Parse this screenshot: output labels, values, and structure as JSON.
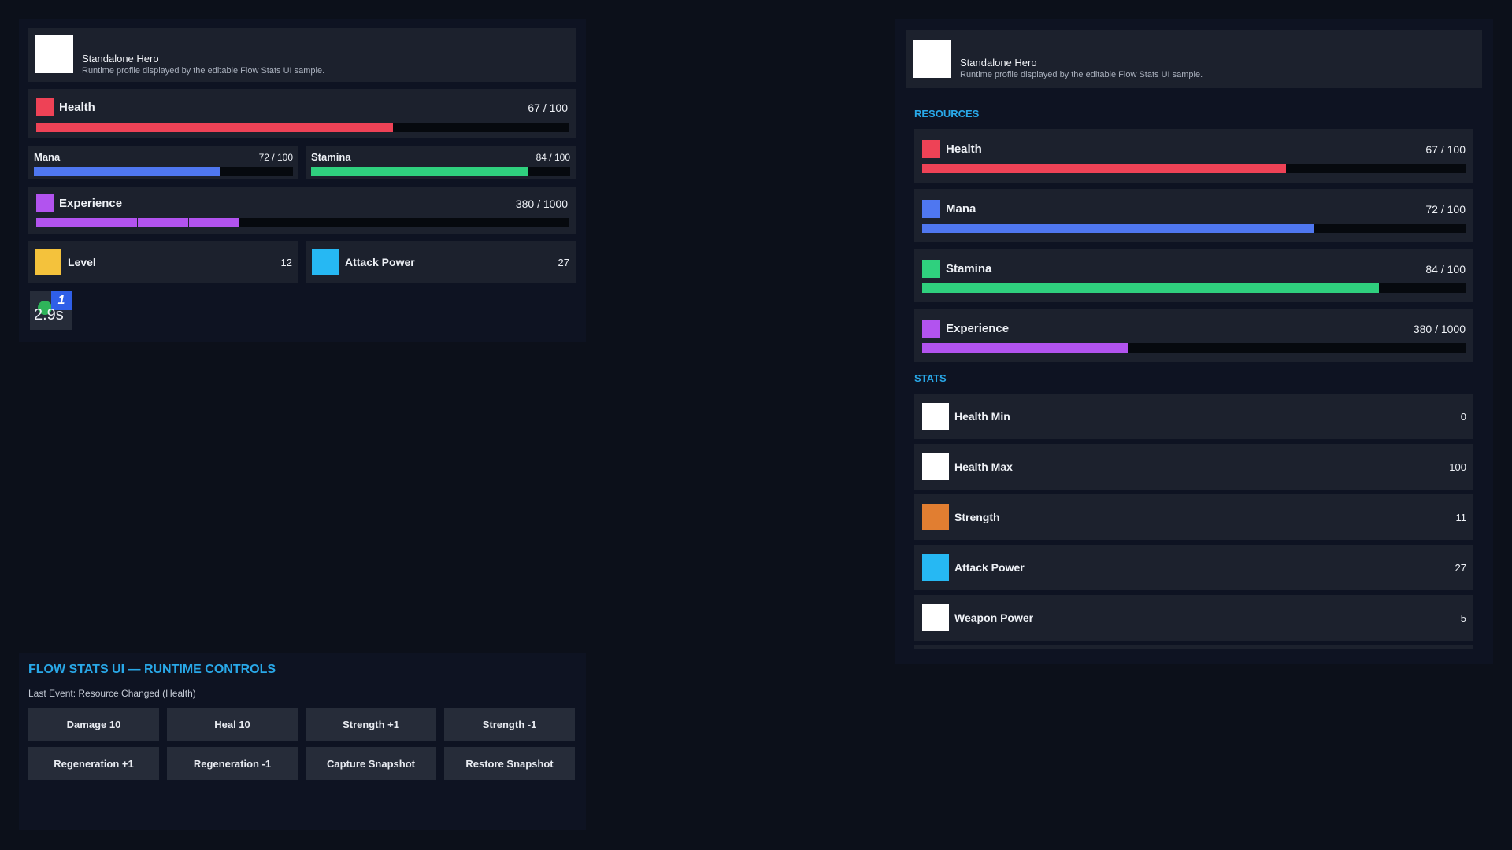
{
  "colors": {
    "accent": "#29a8e8",
    "health": "#ee4256",
    "mana": "#4f77f0",
    "stamina": "#2fd07e",
    "experience": "#b253ef",
    "level": "#f4c23c",
    "attack_power": "#26b8f3",
    "strength": "#e17e31",
    "white_icon": "#ffffff"
  },
  "left_panel": {
    "profile": {
      "name": "Standalone Hero",
      "description": "Runtime profile displayed by the editable Flow Stats UI sample."
    },
    "health": {
      "label": "Health",
      "value_text": "67 / 100",
      "fraction": 0.67
    },
    "mana": {
      "label": "Mana",
      "value_text": "72 / 100",
      "fraction": 0.72
    },
    "stamina": {
      "label": "Stamina",
      "value_text": "84 / 100",
      "fraction": 0.84
    },
    "experience": {
      "label": "Experience",
      "value_text": "380 / 1000",
      "fraction": 0.38,
      "segments": 4
    },
    "level": {
      "label": "Level",
      "value": "12"
    },
    "attack_power": {
      "label": "Attack Power",
      "value": "27"
    },
    "effect": {
      "badge": "1",
      "timer": "2.9s"
    }
  },
  "controls": {
    "title": "FLOW STATS UI — RUNTIME CONTROLS",
    "last_event": "Last Event: Resource Changed (Health)",
    "buttons": [
      "Damage 10",
      "Heal 10",
      "Strength +1",
      "Strength -1",
      "Regeneration +1",
      "Regeneration -1",
      "Capture Snapshot",
      "Restore Snapshot"
    ]
  },
  "right_panel": {
    "profile": {
      "name": "Standalone Hero",
      "description": "Runtime profile displayed by the editable Flow Stats UI sample."
    },
    "resources_title": "RESOURCES",
    "resources": [
      {
        "label": "Health",
        "value_text": "67 / 100",
        "fraction": 0.67,
        "color": "#ee4256"
      },
      {
        "label": "Mana",
        "value_text": "72 / 100",
        "fraction": 0.72,
        "color": "#4f77f0"
      },
      {
        "label": "Stamina",
        "value_text": "84 / 100",
        "fraction": 0.84,
        "color": "#2fd07e"
      },
      {
        "label": "Experience",
        "value_text": "380 / 1000",
        "fraction": 0.38,
        "color": "#b253ef"
      }
    ],
    "stats_title": "STATS",
    "stats": [
      {
        "label": "Health Min",
        "value": "0",
        "color": "#ffffff"
      },
      {
        "label": "Health Max",
        "value": "100",
        "color": "#ffffff"
      },
      {
        "label": "Strength",
        "value": "11",
        "color": "#e17e31"
      },
      {
        "label": "Attack Power",
        "value": "27",
        "color": "#26b8f3"
      },
      {
        "label": "Weapon Power",
        "value": "5",
        "color": "#ffffff"
      }
    ]
  }
}
